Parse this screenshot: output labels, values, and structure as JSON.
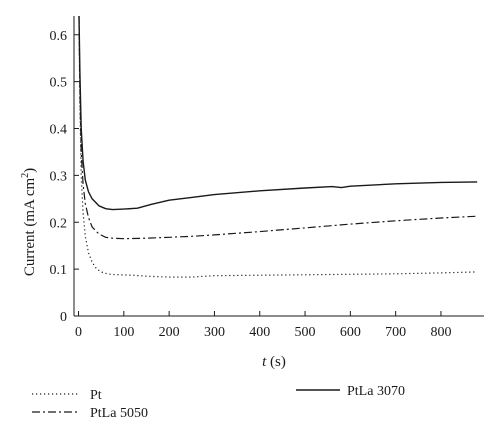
{
  "chart_data": {
    "type": "line",
    "xlabel_italic": "t",
    "xlabel_rest": " (s)",
    "ylabel_main": "Current (mA cm",
    "ylabel_sup": "2",
    "ylabel_close": ")",
    "xlim": [
      -10,
      895
    ],
    "ylim": [
      0,
      0.64
    ],
    "x_ticks": [
      0,
      100,
      200,
      300,
      400,
      500,
      600,
      700,
      800
    ],
    "x_tick_labels": [
      "0",
      "100",
      "200",
      "300",
      "400",
      "500",
      "600",
      "700",
      "800"
    ],
    "y_ticks": [
      0,
      0.1,
      0.2,
      0.3,
      0.4,
      0.5,
      0.6
    ],
    "y_tick_labels": [
      "0",
      "0.1",
      "0.2",
      "0.3",
      "0.4",
      "0.5",
      "0.6"
    ],
    "grid": false,
    "legend_position": "bottom",
    "series": [
      {
        "name": "Pt",
        "style": "dotted",
        "x": [
          1,
          3,
          6,
          10,
          15,
          22,
          30,
          40,
          55,
          70,
          90,
          120,
          150,
          200,
          250,
          300,
          400,
          500,
          600,
          700,
          800,
          880
        ],
        "y": [
          0.62,
          0.45,
          0.3,
          0.22,
          0.17,
          0.135,
          0.115,
          0.1,
          0.092,
          0.089,
          0.088,
          0.087,
          0.085,
          0.083,
          0.083,
          0.086,
          0.087,
          0.088,
          0.089,
          0.09,
          0.092,
          0.094
        ]
      },
      {
        "name": "PtLa 5050",
        "style": "dash-dot",
        "x": [
          1,
          3,
          6,
          10,
          15,
          22,
          30,
          45,
          60,
          75,
          100,
          150,
          200,
          250,
          300,
          400,
          500,
          600,
          700,
          800,
          880
        ],
        "y": [
          0.64,
          0.48,
          0.35,
          0.28,
          0.24,
          0.21,
          0.19,
          0.175,
          0.168,
          0.166,
          0.165,
          0.166,
          0.168,
          0.17,
          0.173,
          0.18,
          0.188,
          0.196,
          0.203,
          0.209,
          0.213
        ]
      },
      {
        "name": "PtLa 3070",
        "style": "solid",
        "x": [
          1,
          3,
          6,
          10,
          15,
          22,
          30,
          45,
          60,
          75,
          100,
          130,
          160,
          200,
          250,
          300,
          400,
          500,
          560,
          580,
          600,
          700,
          800,
          880
        ],
        "y": [
          0.64,
          0.52,
          0.4,
          0.33,
          0.29,
          0.265,
          0.25,
          0.235,
          0.229,
          0.227,
          0.228,
          0.23,
          0.238,
          0.247,
          0.253,
          0.259,
          0.267,
          0.273,
          0.276,
          0.274,
          0.277,
          0.282,
          0.285,
          0.286
        ]
      }
    ]
  }
}
